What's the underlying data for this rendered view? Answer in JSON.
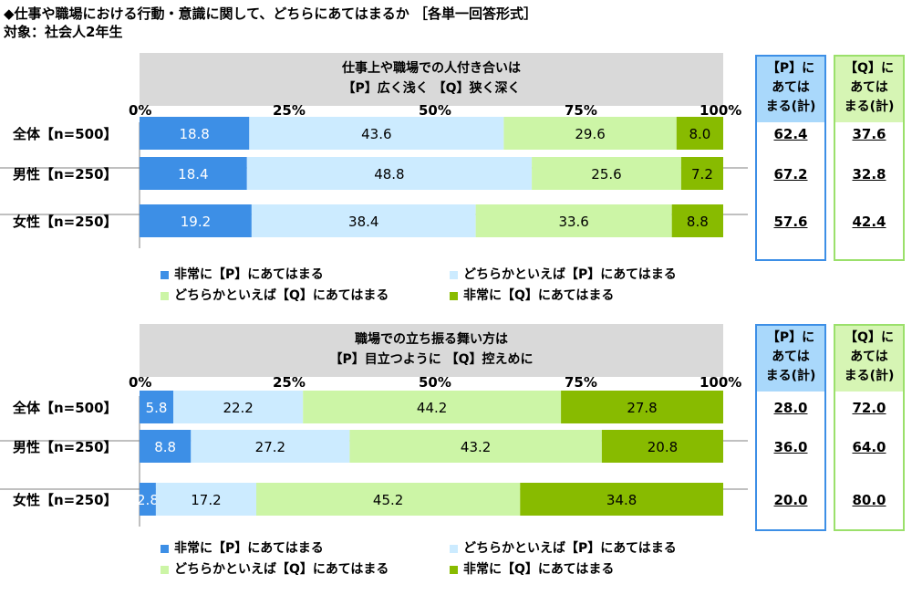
{
  "header": {
    "title": "◆仕事や職場における行動・意識に関して、どちらにあてはまるか ［各単一回答形式］",
    "subtitle": "対象：社会人2年生"
  },
  "colors": {
    "strong_p": "#3d8fe6",
    "weak_p": "#ccebff",
    "weak_q": "#ccf5a6",
    "strong_q": "#88bb00",
    "p_box_border": "#3d8fe6",
    "p_box_fill": "#a9d8fb",
    "q_box_border": "#9be06b",
    "q_box_fill": "#d6f5b4"
  },
  "tick_labels": [
    "0%",
    "25%",
    "50%",
    "75%",
    "100%"
  ],
  "legend": [
    "非常に【P】にあてはまる",
    "どちらかといえば【P】にあてはまる",
    "どちらかといえば【Q】にあてはまる",
    "非常に【Q】にあてはまる"
  ],
  "sum_headers": {
    "p": [
      "【P】に",
      "あては",
      "まる(計)"
    ],
    "q": [
      "【Q】に",
      "あては",
      "まる(計)"
    ]
  },
  "chart_data": [
    {
      "type": "bar",
      "stacked": true,
      "orientation": "horizontal",
      "title_lines": [
        "仕事上や職場での人付き合いは",
        "【P】広く浅く 【Q】狭く深く"
      ],
      "categories": [
        "全体【n=500】",
        "男性【n=250】",
        "女性【n=250】"
      ],
      "series": [
        {
          "name": "非常に【P】にあてはまる",
          "values": [
            18.8,
            18.4,
            19.2
          ]
        },
        {
          "name": "どちらかといえば【P】にあてはまる",
          "values": [
            43.6,
            48.8,
            38.4
          ]
        },
        {
          "name": "どちらかといえば【Q】にあてはまる",
          "values": [
            29.6,
            25.6,
            33.6
          ]
        },
        {
          "name": "非常に【Q】にあてはまる",
          "values": [
            8.0,
            7.2,
            8.8
          ]
        }
      ],
      "value_labels": [
        [
          "18.8",
          "18.4",
          "19.2"
        ],
        [
          "43.6",
          "48.8",
          "38.4"
        ],
        [
          "29.6",
          "25.6",
          "33.6"
        ],
        [
          "8.0",
          "7.2",
          "8.8"
        ]
      ],
      "p_total": [
        "62.4",
        "67.2",
        "57.6"
      ],
      "q_total": [
        "37.6",
        "32.8",
        "42.4"
      ],
      "xlim": [
        0,
        100
      ]
    },
    {
      "type": "bar",
      "stacked": true,
      "orientation": "horizontal",
      "title_lines": [
        "職場での立ち振る舞い方は",
        "【P】目立つように 【Q】控えめに"
      ],
      "categories": [
        "全体【n=500】",
        "男性【n=250】",
        "女性【n=250】"
      ],
      "series": [
        {
          "name": "非常に【P】にあてはまる",
          "values": [
            5.8,
            8.8,
            2.8
          ]
        },
        {
          "name": "どちらかといえば【P】にあてはまる",
          "values": [
            22.2,
            27.2,
            17.2
          ]
        },
        {
          "name": "どちらかといえば【Q】にあてはまる",
          "values": [
            44.2,
            43.2,
            45.2
          ]
        },
        {
          "name": "非常に【Q】にあてはまる",
          "values": [
            27.8,
            20.8,
            34.8
          ]
        }
      ],
      "value_labels": [
        [
          "5.8",
          "8.8",
          "2.8"
        ],
        [
          "22.2",
          "27.2",
          "17.2"
        ],
        [
          "44.2",
          "43.2",
          "45.2"
        ],
        [
          "27.8",
          "20.8",
          "34.8"
        ]
      ],
      "p_total": [
        "28.0",
        "36.0",
        "20.0"
      ],
      "q_total": [
        "72.0",
        "64.0",
        "80.0"
      ],
      "xlim": [
        0,
        100
      ]
    }
  ]
}
